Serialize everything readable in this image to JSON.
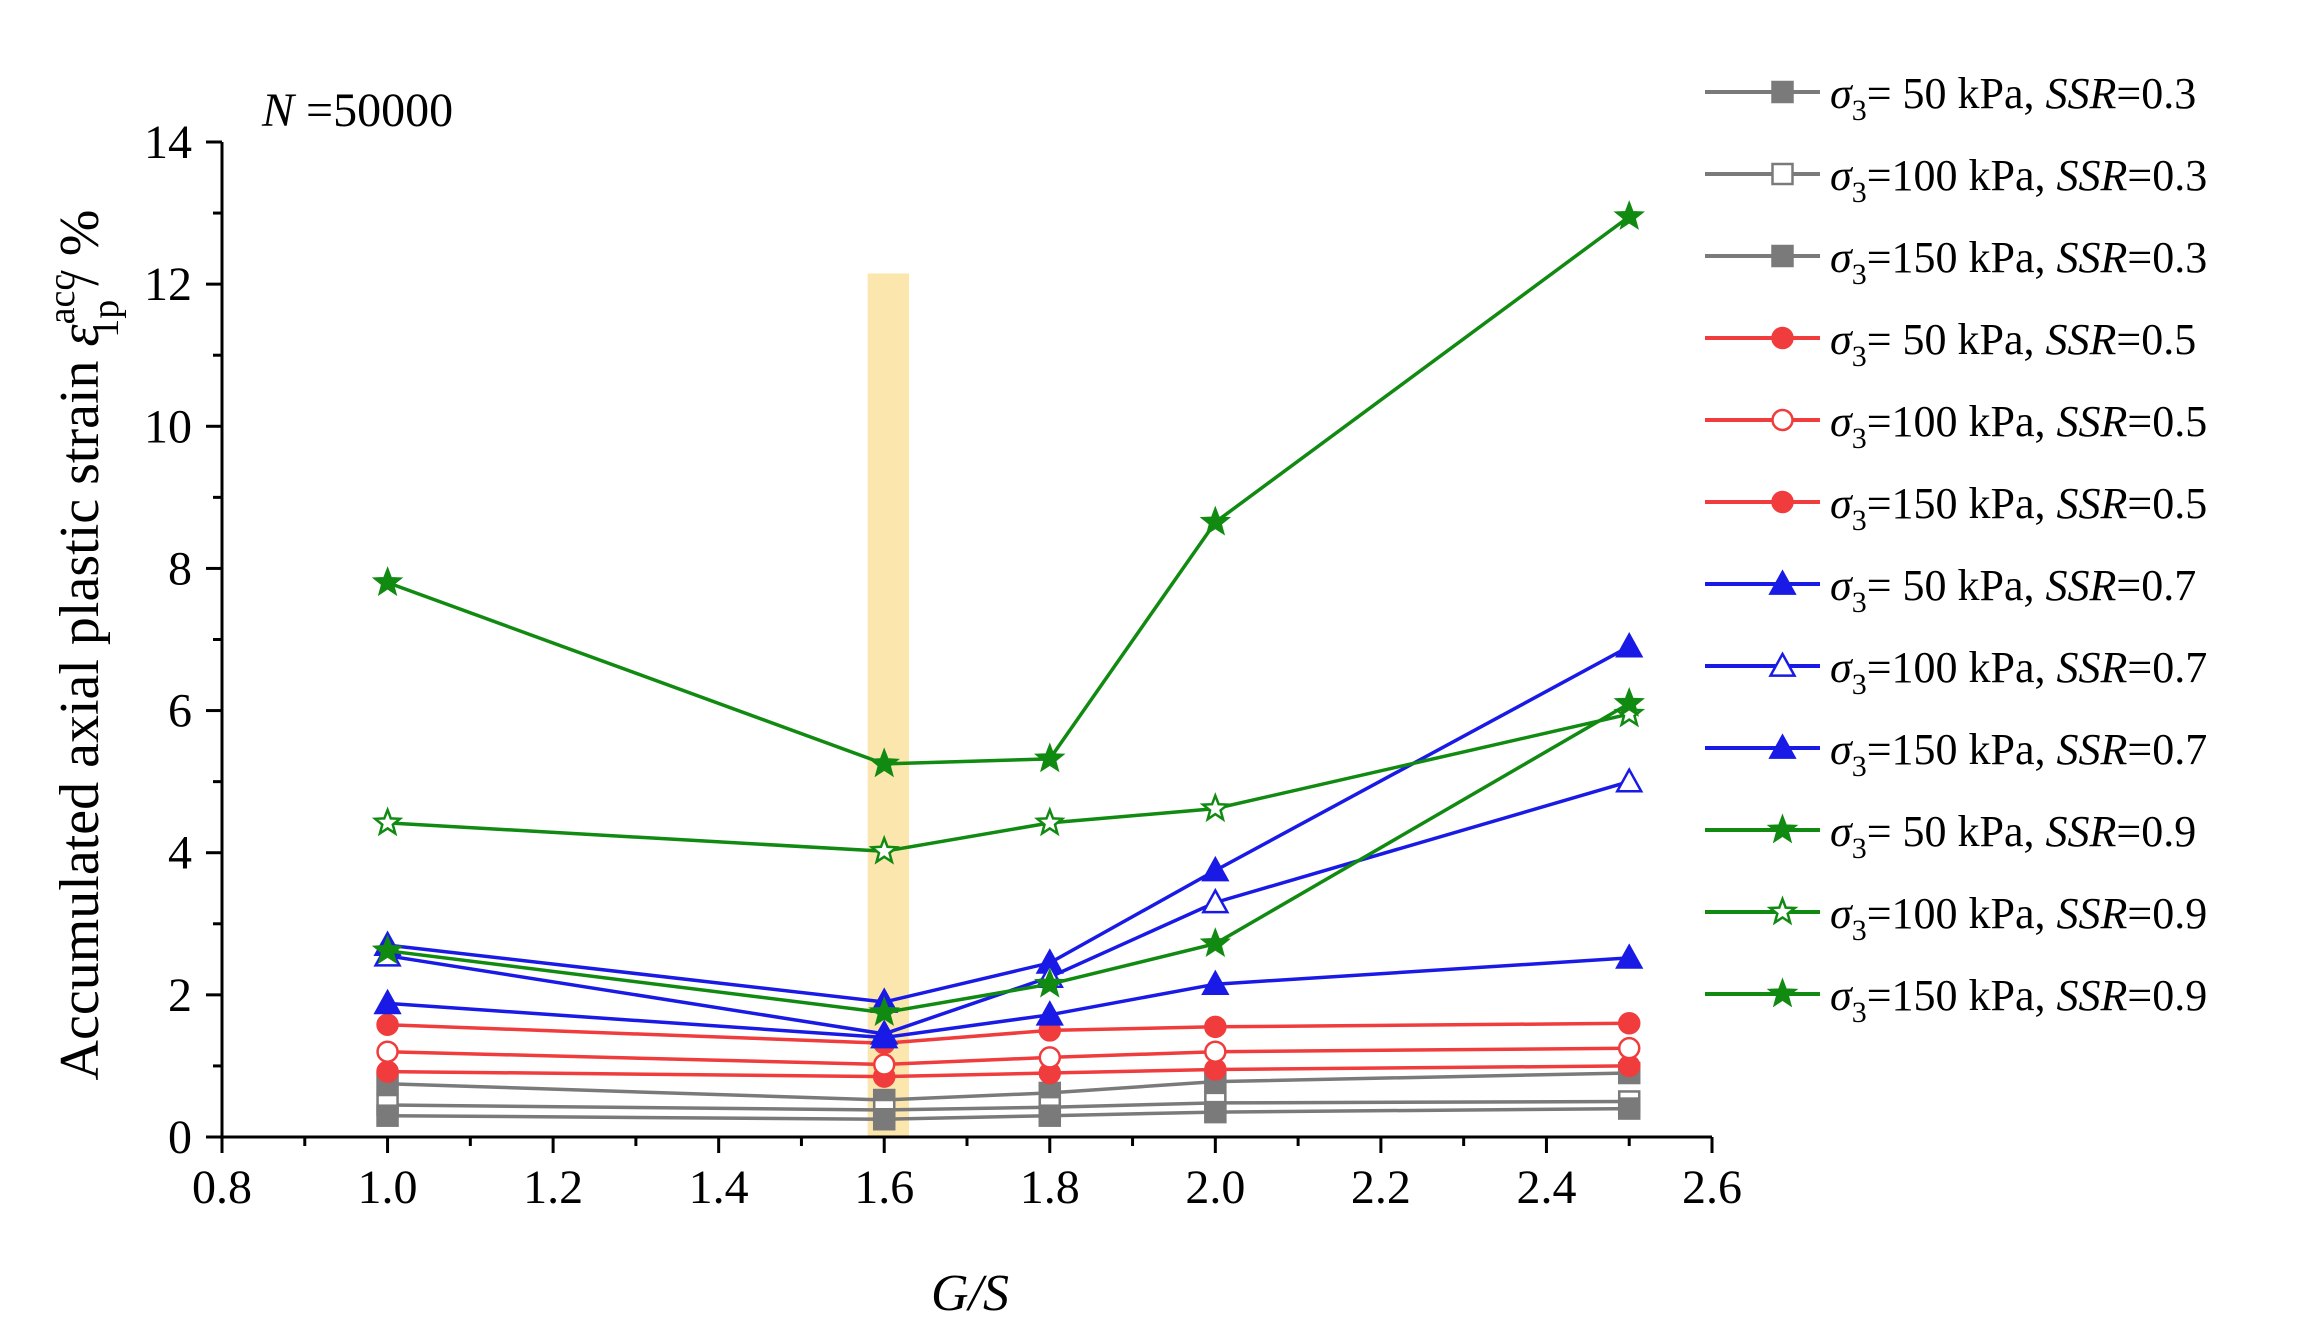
{
  "chart_data": {
    "type": "line",
    "annotation": {
      "prefix": "N",
      "suffix": " =50000"
    },
    "xlabel": "G/S",
    "ylabel": {
      "main": "Accumulated axial plastic strain ",
      "symbol": "ε",
      "sup": "acc",
      "sub": "1p",
      "unit": " / %"
    },
    "xlim": [
      0.8,
      2.6
    ],
    "ylim": [
      0,
      14
    ],
    "xticks": [
      "0.8",
      "1.0",
      "1.2",
      "1.4",
      "1.6",
      "1.8",
      "2.0",
      "2.2",
      "2.4",
      "2.6"
    ],
    "yticks": [
      "0",
      "2",
      "4",
      "6",
      "8",
      "10",
      "12",
      "14"
    ],
    "x": [
      1.0,
      1.6,
      1.8,
      2.0,
      2.5
    ],
    "highlight_band": {
      "x0": 1.58,
      "x1": 1.63,
      "y0": 0,
      "y1": 12.15,
      "color": "#f7d26a"
    },
    "legend_position": "right",
    "series": [
      {
        "legend": {
          "pre": "σ",
          "sub": "3",
          "mid": "= 50  kPa, ",
          "em": "SSR",
          "post": "=0.3"
        },
        "color": "#7a7a7a",
        "marker": "square",
        "filled": true,
        "values": [
          0.75,
          0.52,
          0.62,
          0.78,
          0.9
        ]
      },
      {
        "legend": {
          "pre": "σ",
          "sub": "3",
          "mid": "=100 kPa, ",
          "em": "SSR",
          "post": "=0.3"
        },
        "color": "#7a7a7a",
        "marker": "square",
        "filled": false,
        "values": [
          0.45,
          0.38,
          0.42,
          0.48,
          0.5
        ]
      },
      {
        "legend": {
          "pre": "σ",
          "sub": "3",
          "mid": "=150 kPa, ",
          "em": "SSR",
          "post": "=0.3"
        },
        "color": "#7a7a7a",
        "marker": "square",
        "filled": true,
        "values": [
          0.3,
          0.25,
          0.3,
          0.35,
          0.4
        ]
      },
      {
        "legend": {
          "pre": "σ",
          "sub": "3",
          "mid": "=  50 kPa, ",
          "em": "SSR",
          "post": "=0.5"
        },
        "color": "#f03c3c",
        "marker": "circle",
        "filled": true,
        "values": [
          0.92,
          0.85,
          0.9,
          0.95,
          1.0
        ]
      },
      {
        "legend": {
          "pre": "σ",
          "sub": "3",
          "mid": "=100 kPa, ",
          "em": "SSR",
          "post": "=0.5"
        },
        "color": "#f03c3c",
        "marker": "circle",
        "filled": false,
        "values": [
          1.2,
          1.02,
          1.12,
          1.2,
          1.25
        ]
      },
      {
        "legend": {
          "pre": "σ",
          "sub": "3",
          "mid": "=150 kPa, ",
          "em": "SSR",
          "post": "=0.5"
        },
        "color": "#f03c3c",
        "marker": "circle",
        "filled": true,
        "values": [
          1.58,
          1.32,
          1.5,
          1.55,
          1.6
        ]
      },
      {
        "legend": {
          "pre": "σ",
          "sub": "3",
          "mid": "=  50 kPa, ",
          "em": "SSR",
          "post": "=0.7"
        },
        "color": "#1a1ae6",
        "marker": "triangle",
        "filled": true,
        "values": [
          2.7,
          1.9,
          2.45,
          3.75,
          6.9
        ]
      },
      {
        "legend": {
          "pre": "σ",
          "sub": "3",
          "mid": "=100 kPa, ",
          "em": "SSR",
          "post": "=0.7"
        },
        "color": "#1a1ae6",
        "marker": "triangle",
        "filled": false,
        "values": [
          2.55,
          1.45,
          2.25,
          3.3,
          5.0
        ]
      },
      {
        "legend": {
          "pre": "σ",
          "sub": "3",
          "mid": "=150 kPa, ",
          "em": "SSR",
          "post": "=0.7"
        },
        "color": "#1a1ae6",
        "marker": "triangle",
        "filled": true,
        "values": [
          1.88,
          1.4,
          1.72,
          2.15,
          2.52
        ]
      },
      {
        "legend": {
          "pre": "σ",
          "sub": "3",
          "mid": "=  50 kPa, ",
          "em": "SSR",
          "post": "=0.9"
        },
        "color": "#118a11",
        "marker": "star",
        "filled": true,
        "values": [
          7.8,
          5.25,
          5.32,
          8.65,
          12.95
        ]
      },
      {
        "legend": {
          "pre": "σ",
          "sub": "3",
          "mid": "=100 kPa, ",
          "em": "SSR",
          "post": "=0.9"
        },
        "color": "#118a11",
        "marker": "star",
        "filled": false,
        "values": [
          4.42,
          4.02,
          4.42,
          4.62,
          5.95
        ]
      },
      {
        "legend": {
          "pre": "σ",
          "sub": "3",
          "mid": "=150 kPa, ",
          "em": "SSR",
          "post": "=0.9"
        },
        "color": "#118a11",
        "marker": "star",
        "filled": true,
        "values": [
          2.62,
          1.75,
          2.15,
          2.72,
          6.1
        ]
      }
    ]
  }
}
